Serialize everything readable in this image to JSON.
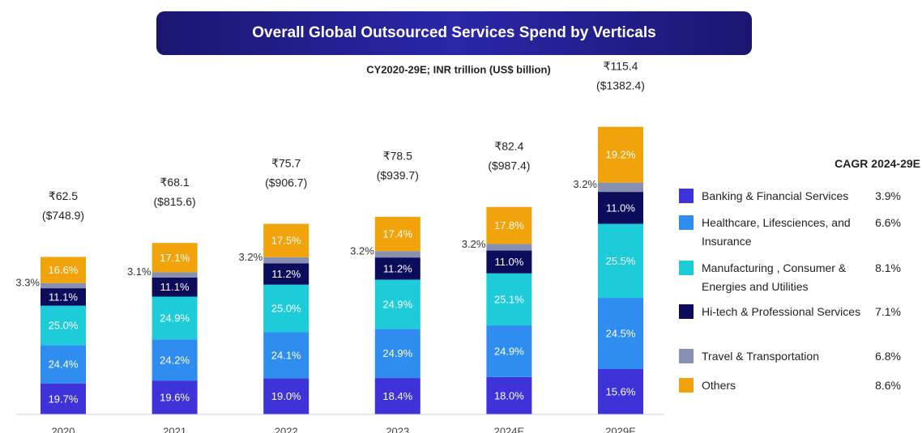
{
  "chart_data": {
    "type": "stacked_bar",
    "title": "Overall Global Outsourced Services Spend by Verticals",
    "subtitle": "CY2020-29E; INR trillion (US$ billion)",
    "categories": [
      "2020",
      "2021",
      "2022",
      "2023",
      "2024E",
      "2029E"
    ],
    "totals": {
      "values": [
        62.5,
        68.1,
        75.7,
        78.5,
        82.4,
        115.4
      ],
      "value_labels": [
        "₹62.5",
        "₹68.1",
        "₹75.7",
        "₹78.5",
        "₹82.4",
        "₹115.4"
      ]
    },
    "totals_usd": {
      "values": [
        748.9,
        815.6,
        906.7,
        939.7,
        987.4,
        1382.4
      ],
      "value_labels": [
        "($748.9)",
        "($815.6)",
        "($906.7)",
        "($939.7)",
        "($987.4)",
        "($1382.4)"
      ]
    },
    "cagr_title": "CAGR 2024-29E",
    "series": [
      {
        "name": "Banking & Financial Services",
        "color": "#3d33d8",
        "values": [
          19.7,
          19.6,
          19.0,
          18.4,
          18.0,
          15.6
        ],
        "value_labels": [
          "19.7%",
          "19.6%",
          "19.0%",
          "18.4%",
          "18.0%",
          "15.6%"
        ],
        "cagr": 3.9,
        "cagr_label": "3.9%"
      },
      {
        "name": "Healthcare, Lifesciences, and Insurance",
        "color": "#2f8df0",
        "values": [
          24.4,
          24.2,
          24.1,
          24.9,
          24.9,
          24.5
        ],
        "value_labels": [
          "24.4%",
          "24.2%",
          "24.1%",
          "24.9%",
          "24.9%",
          "24.5%"
        ],
        "cagr": 6.6,
        "cagr_label": "6.6%"
      },
      {
        "name": "Manufacturing , Consumer & Energies and Utilities",
        "color": "#1dcbd9",
        "values": [
          25.0,
          24.9,
          25.0,
          24.9,
          25.1,
          25.5
        ],
        "value_labels": [
          "25.0%",
          "24.9%",
          "25.0%",
          "24.9%",
          "25.1%",
          "25.5%"
        ],
        "cagr": 8.1,
        "cagr_label": "8.1%"
      },
      {
        "name": "Hi-tech & Professional Services",
        "color": "#0c0c5c",
        "values": [
          11.1,
          11.1,
          11.2,
          11.2,
          11.0,
          11.0
        ],
        "value_labels": [
          "11.1%",
          "11.1%",
          "11.2%",
          "11.2%",
          "11.0%",
          "11.0%"
        ],
        "cagr": 7.1,
        "cagr_label": "7.1%"
      },
      {
        "name": "Travel & Transportation",
        "color": "#8790b0",
        "values": [
          3.3,
          3.1,
          3.2,
          3.2,
          3.2,
          3.2
        ],
        "value_labels": [
          "3.3%",
          "3.1%",
          "3.2%",
          "3.2%",
          "3.2%",
          "3.2%"
        ],
        "cagr": 6.8,
        "cagr_label": "6.8%",
        "label_outside": true
      },
      {
        "name": "Others",
        "color": "#f0a30a",
        "values": [
          16.6,
          17.1,
          17.5,
          17.4,
          17.8,
          19.2
        ],
        "value_labels": [
          "16.6%",
          "17.1%",
          "17.5%",
          "17.4%",
          "17.8%",
          "19.2%"
        ],
        "cagr": 8.6,
        "cagr_label": "8.6%"
      }
    ]
  }
}
